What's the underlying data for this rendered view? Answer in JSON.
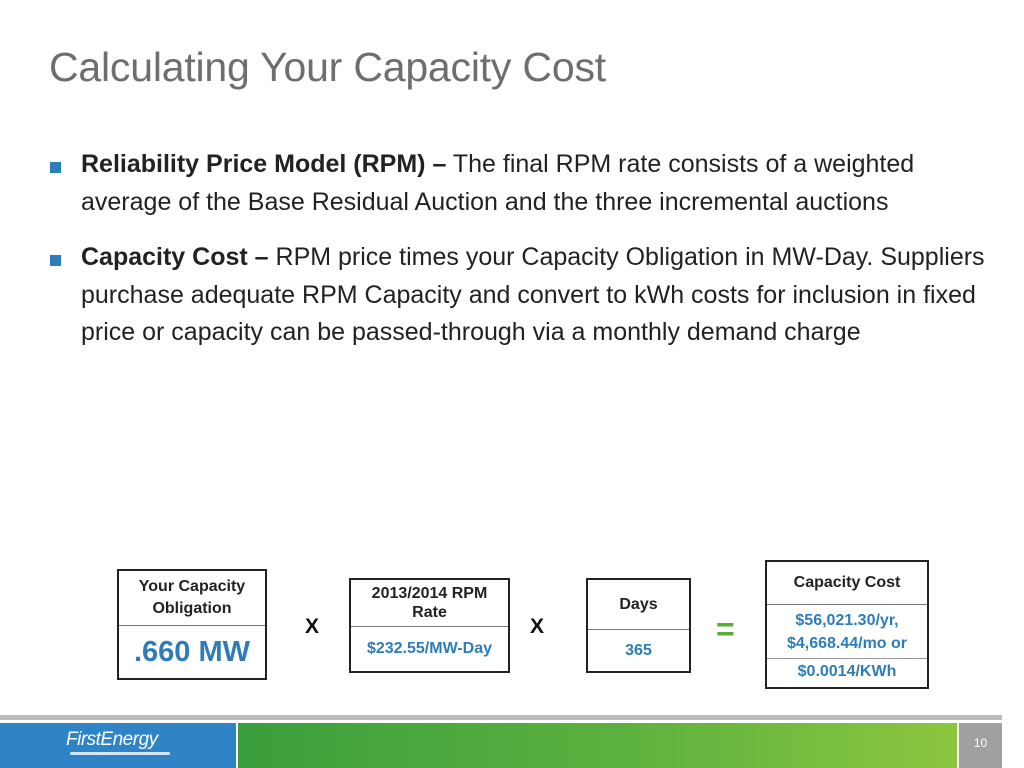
{
  "slide": {
    "title": "Calculating Your Capacity Cost",
    "page_number": "10"
  },
  "bullets": [
    {
      "bold": "Reliability Price Model (RPM) –",
      "text": " The final RPM rate consists of a weighted average of the Base Residual Auction and the three incremental auctions"
    },
    {
      "bold": "Capacity Cost –",
      "text": " RPM price times your Capacity Obligation in MW-Day. Suppliers purchase adequate RPM Capacity and convert to kWh costs for inclusion in fixed price or capacity can be passed-through via a monthly demand charge"
    }
  ],
  "formula": {
    "obligation": {
      "header": "Your Capacity Obligation",
      "value": ".660 MW"
    },
    "times1": "X",
    "rate": {
      "header": "2013/2014 RPM Rate",
      "value": "$232.55/MW-Day"
    },
    "times2": "X",
    "days": {
      "header": "Days",
      "value": "365"
    },
    "equals": "=",
    "cost": {
      "header": "Capacity Cost",
      "value_line1": "$56,021.30/yr,",
      "value_line2": "$4,668.44/mo or",
      "value_line3": "$0.0014/KWh"
    }
  },
  "footer": {
    "logo": "FirstEnergy"
  },
  "colors": {
    "accent_blue": "#2e7db8",
    "equals_green": "#5aab3b"
  }
}
